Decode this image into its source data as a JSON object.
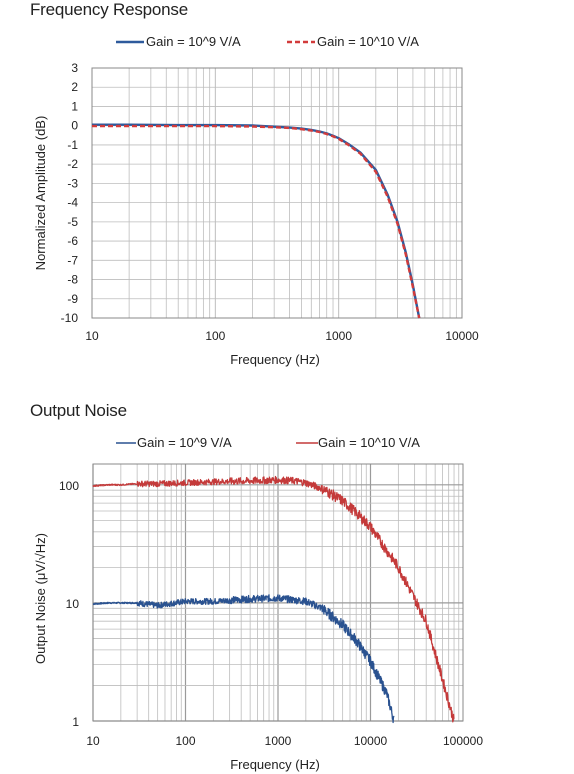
{
  "sections": {
    "frequency_response_title": "Frequency Response",
    "output_noise_title": "Output Noise"
  },
  "colors": {
    "series_blue": "#2e5a9c",
    "series_red": "#d23b3b",
    "noise_blue": "#2a5290",
    "noise_red": "#c43a3a",
    "grid": "#bdbdbd",
    "frame": "#888888"
  },
  "chart_data": [
    {
      "type": "line",
      "title": "Frequency Response",
      "xlabel": "Frequency (Hz)",
      "ylabel": "Normalized Amplitude (dB)",
      "x_scale": "log",
      "xlim": [
        10,
        10000
      ],
      "ylim": [
        -10,
        3
      ],
      "x_ticks": [
        "10",
        "100",
        "1000",
        "10000"
      ],
      "y_ticks": [
        "3",
        "2",
        "1",
        "0",
        "-1",
        "-2",
        "-3",
        "-4",
        "-5",
        "-6",
        "-7",
        "-8",
        "-9",
        "-10"
      ],
      "grid": true,
      "legend_position": "top",
      "series": [
        {
          "name": "Gain = 10^9 V/A",
          "style": "solid",
          "color": "#2e5a9c",
          "x": [
            10,
            20,
            50,
            100,
            200,
            300,
            400,
            500,
            600,
            700,
            800,
            900,
            1000,
            1200,
            1500,
            2000,
            2500,
            3000,
            3500,
            4000,
            4500
          ],
          "y": [
            0.05,
            0.05,
            0.03,
            0.03,
            0.01,
            -0.05,
            -0.1,
            -0.15,
            -0.22,
            -0.3,
            -0.4,
            -0.52,
            -0.65,
            -0.95,
            -1.4,
            -2.3,
            -3.6,
            -5.0,
            -6.6,
            -8.3,
            -10
          ]
        },
        {
          "name": "Gain = 10^10 V/A",
          "style": "dashed",
          "color": "#d23b3b",
          "x": [
            10,
            20,
            50,
            100,
            200,
            300,
            400,
            500,
            600,
            700,
            800,
            900,
            1000,
            1200,
            1500,
            2000,
            2500,
            3000,
            3500,
            4000,
            4500
          ],
          "y": [
            -0.02,
            -0.02,
            -0.02,
            -0.02,
            -0.04,
            -0.08,
            -0.12,
            -0.18,
            -0.25,
            -0.33,
            -0.43,
            -0.55,
            -0.68,
            -1.0,
            -1.45,
            -2.4,
            -3.7,
            -5.1,
            -6.7,
            -8.4,
            -10
          ]
        }
      ]
    },
    {
      "type": "line",
      "title": "Output Noise",
      "xlabel": "Frequency (Hz)",
      "ylabel": "Output Noise (μV/√Hz)",
      "x_scale": "log",
      "y_scale": "log",
      "xlim": [
        10,
        100000
      ],
      "ylim": [
        1,
        150
      ],
      "x_ticks": [
        "10",
        "100",
        "1000",
        "10000",
        "100000"
      ],
      "y_ticks": [
        "1",
        "10",
        "100"
      ],
      "grid": true,
      "legend_position": "top",
      "series": [
        {
          "name": "Gain = 10^9 V/A",
          "style": "solid",
          "color": "#2a5290",
          "x": [
            10,
            15,
            20,
            30,
            50,
            100,
            200,
            500,
            1000,
            2000,
            3000,
            5000,
            7000,
            10000,
            15000,
            18000
          ],
          "y": [
            9.8,
            10.0,
            10.0,
            10.0,
            9.5,
            10.3,
            10.3,
            10.8,
            11.0,
            10.3,
            9.0,
            6.5,
            4.8,
            3.2,
            1.7,
            1.0
          ]
        },
        {
          "name": "Gain = 10^10 V/A",
          "style": "solid",
          "color": "#c43a3a",
          "x": [
            10,
            15,
            20,
            30,
            50,
            100,
            200,
            500,
            1000,
            1500,
            2000,
            3000,
            5000,
            7000,
            10000,
            20000,
            40000,
            80000
          ],
          "y": [
            98,
            100,
            100,
            102,
            102,
            104,
            106,
            108,
            110,
            108,
            104,
            93,
            73,
            58,
            44,
            20,
            7.0,
            1.0
          ]
        }
      ]
    }
  ]
}
